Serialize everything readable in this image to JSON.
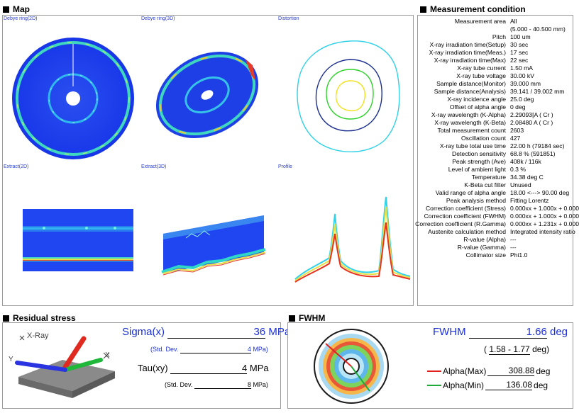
{
  "sections": {
    "map_title": "Map",
    "measurement_title": "Measurement condition",
    "residual_title": "Residual stress",
    "fwhm_title": "FWHM"
  },
  "map": {
    "labels": {
      "debye_2d": "Debye ring(2D)",
      "debye_3d": "Debye ring(3D)",
      "distortion": "Distortion",
      "extract_2d": "Extract(2D)",
      "extract_3d": "Extract(3D)",
      "profile": "Profile"
    }
  },
  "measurement_condition": [
    {
      "key": "Measurement area",
      "value": "All"
    },
    {
      "key": "",
      "value": "(5.000 - 40.500 mm)"
    },
    {
      "key": "Pitch",
      "value": "100 um"
    },
    {
      "key": "X-ray irradiation time(Setup)",
      "value": "30 sec"
    },
    {
      "key": "X-ray irradiation time(Meas.)",
      "value": "17 sec"
    },
    {
      "key": "X-ray irradiation time(Max)",
      "value": "22 sec"
    },
    {
      "key": "X-ray tube current",
      "value": "1.50 mA"
    },
    {
      "key": "X-ray tube voltage",
      "value": "30.00 kV"
    },
    {
      "key": "Sample distance(Monitor)",
      "value": "39.000 mm"
    },
    {
      "key": "Sample distance(Analysis)",
      "value": "39.141 / 39.002 mm"
    },
    {
      "key": "X-ray incidence angle",
      "value": "25.0 deg"
    },
    {
      "key": "Offset of alpha angle",
      "value": "0 deg"
    },
    {
      "key": "X-ray wavelength (K-Alpha)",
      "value": "2.29093[A ( Cr )"
    },
    {
      "key": "X-ray wavelength (K-Beta)",
      "value": "2.08480 A ( Cr )"
    },
    {
      "key": "Total measurement count",
      "value": "2603"
    },
    {
      "key": "Oscillation count",
      "value": "427"
    },
    {
      "key": "X-ray tube total use time",
      "value": "22.00 h (79184 sec)"
    },
    {
      "key": "Detection sensitivity",
      "value": "68.8 % (591851)"
    },
    {
      "key": "Peak strength (Ave)",
      "value": "408k / 116k"
    },
    {
      "key": "Level of ambient light",
      "value": "0.3 %"
    },
    {
      "key": "Temperature",
      "value": "34.38 deg C"
    },
    {
      "key": "K-Beta cut filter",
      "value": "Unused"
    },
    {
      "key": "Valid range of alpha angle",
      "value": "18.00 <---> 90.00 deg"
    },
    {
      "key": "Peak analysis method",
      "value": "Fitting Lorentz"
    },
    {
      "key": "Correction coefficient (Stress)",
      "value": "0.000xx + 1.000x + 0.000"
    },
    {
      "key": "Correction coefficient (FWHM)",
      "value": "0.000xx + 1.000x + 0.000"
    },
    {
      "key": "Correction coefficient (R.Gamma)",
      "value": "0.000xx + 1.231x + 0.000"
    },
    {
      "key": "Austenite calculation method",
      "value": "Integrated intensity ratio"
    },
    {
      "key": "R-value (Alpha)",
      "value": "---"
    },
    {
      "key": "R-value (Gamma)",
      "value": "---"
    },
    {
      "key": "Collimator size",
      "value": "Phi1.0"
    }
  ],
  "residual_stress": {
    "xray_label": "X-Ray",
    "axis_y": "Y",
    "axis_x": "X",
    "sigma_label": "Sigma(x)",
    "sigma_value": "36",
    "sigma_unit": "MPa",
    "sigma_std_label": "(Std. Dev.",
    "sigma_std_value": "4",
    "sigma_std_unit": "MPa)",
    "tau_label": "Tau(xy)",
    "tau_value": "4",
    "tau_unit": "MPa",
    "tau_std_label": "(Std. Dev.",
    "tau_std_value": "8",
    "tau_std_unit": "MPa)"
  },
  "fwhm": {
    "label": "FWHM",
    "value": "1.66",
    "unit": "deg",
    "range_open": "(",
    "range_value": "1.58 - 1.77",
    "range_close": "deg)",
    "alpha_max_label": "Alpha(Max)",
    "alpha_max_value": "308.88",
    "alpha_min_label": "Alpha(Min)",
    "alpha_min_value": "136.08",
    "angle_unit": "deg",
    "max_color": "#e0201e",
    "min_color": "#1fa83a"
  }
}
